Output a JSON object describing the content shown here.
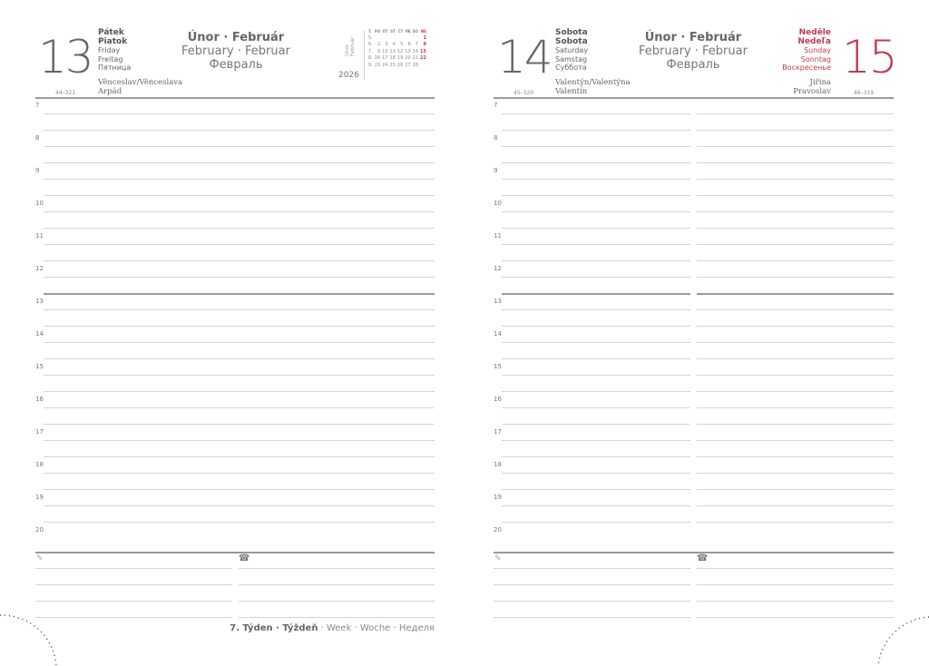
{
  "left_page": {
    "day_number": "13",
    "day_names": {
      "cz": "Pátek",
      "sk": "Piatok",
      "en": "Friday",
      "de": "Freitag",
      "ru": "Пятница"
    },
    "month": {
      "cz_sk": "Únor · Február",
      "en_de": "February · Februar",
      "ru": "Февраль"
    },
    "name_days": [
      "Věnceslav/Věnceslava",
      "Arpád"
    ],
    "day_count": "44–321",
    "year": "2026",
    "mini_calendar": {
      "label": "Únor Február",
      "headers": [
        "T.",
        "PO",
        "ÚT",
        "ST",
        "ČT",
        "PÁ",
        "SO",
        "NE"
      ],
      "rows": [
        [
          "5.",
          "",
          "",
          "",
          "",
          "",
          "",
          "1"
        ],
        [
          "6.",
          "2",
          "3",
          "4",
          "5",
          "6",
          "7",
          "8"
        ],
        [
          "7.",
          "9",
          "10",
          "11",
          "12",
          "13",
          "14",
          "15"
        ],
        [
          "8.",
          "16",
          "17",
          "18",
          "19",
          "20",
          "21",
          "22"
        ],
        [
          "9.",
          "23",
          "24",
          "25",
          "26",
          "27",
          "28",
          ""
        ]
      ]
    },
    "week": {
      "bold": "7. Týden · Týždeň",
      "rest": " · Week · Woche · Неделя"
    }
  },
  "right_page": {
    "saturday": {
      "day_number": "14",
      "day_names": {
        "cz": "Sobota",
        "sk": "Sobota",
        "en": "Saturday",
        "de": "Samstag",
        "ru": "Суббота"
      },
      "name_days": [
        "Valentýn/Valentýna",
        "Valentín"
      ],
      "day_count": "45–320"
    },
    "sunday": {
      "day_number": "15",
      "day_names": {
        "cz": "Neděle",
        "sk": "Nedeľa",
        "en": "Sunday",
        "de": "Sonntag",
        "ru": "Воскресенье"
      },
      "name_days": [
        "Jiřina",
        "Pravoslav"
      ],
      "day_count": "46–319"
    },
    "month": {
      "cz_sk": "Únor · Február",
      "en_de": "February · Februar",
      "ru": "Февраль"
    }
  },
  "hours": [
    "7",
    "8",
    "9",
    "10",
    "11",
    "12",
    "13",
    "14",
    "15",
    "16",
    "17",
    "18",
    "19",
    "20"
  ],
  "icons": {
    "notes": "pencil-icon",
    "phone": "phone-icon"
  },
  "colors": {
    "accent_red": "#c23b4e",
    "text_gray": "#6b6561"
  }
}
